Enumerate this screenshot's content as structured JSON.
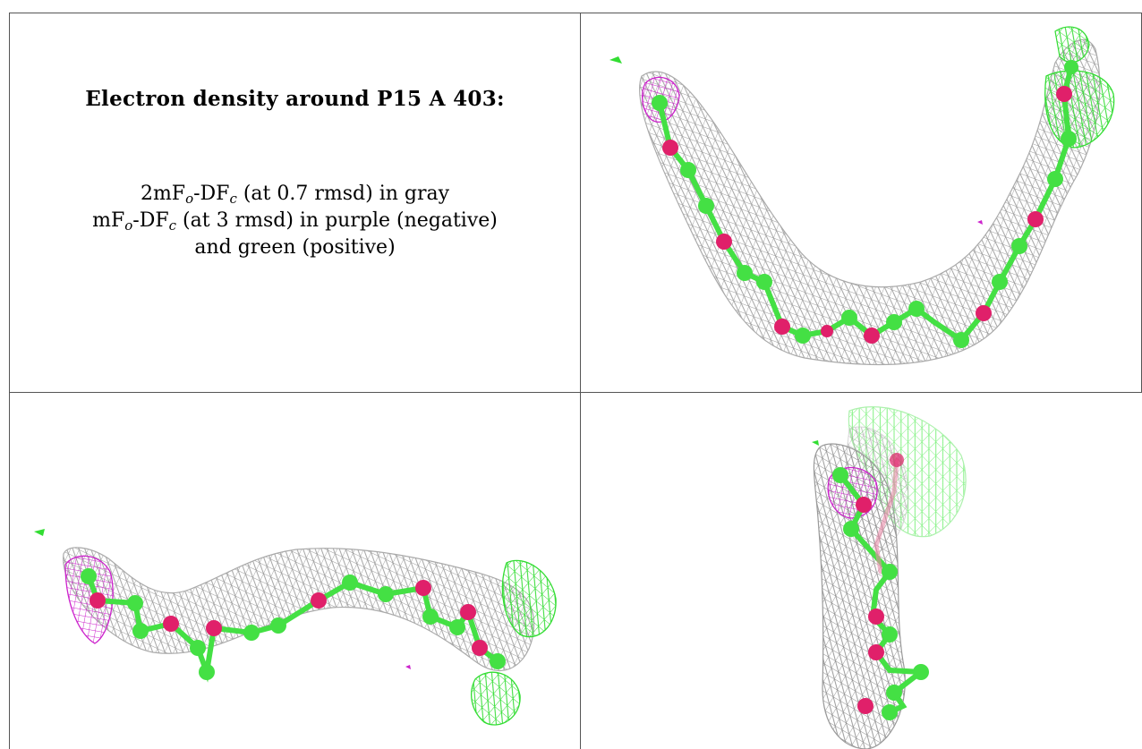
{
  "caption": {
    "title": "Electron density around P15 A 403:",
    "line1": {
      "pre": "2mF",
      "sub1": "o",
      "mid": "-DF",
      "sub2": "c",
      "post": " (at 0.7 rmsd) in gray"
    },
    "line2": {
      "pre": "mF",
      "sub1": "o",
      "mid": "-DF",
      "sub2": "c",
      "post": " (at 3 rmsd) in purple (negative)"
    },
    "line3": "and green (positive)"
  },
  "colors": {
    "mesh_gray": "#9a9a9a",
    "mesh_green": "#33dd33",
    "mesh_purple": "#cc22cc",
    "carbon_green": "#44e044",
    "oxygen_pink": "#e0206a",
    "border": "#555555"
  },
  "views": [
    {
      "name": "view-top-right",
      "description_icon": "electron-density-mesh"
    },
    {
      "name": "view-bottom-left",
      "description_icon": "electron-density-mesh"
    },
    {
      "name": "view-bottom-right",
      "description_icon": "electron-density-mesh"
    }
  ]
}
